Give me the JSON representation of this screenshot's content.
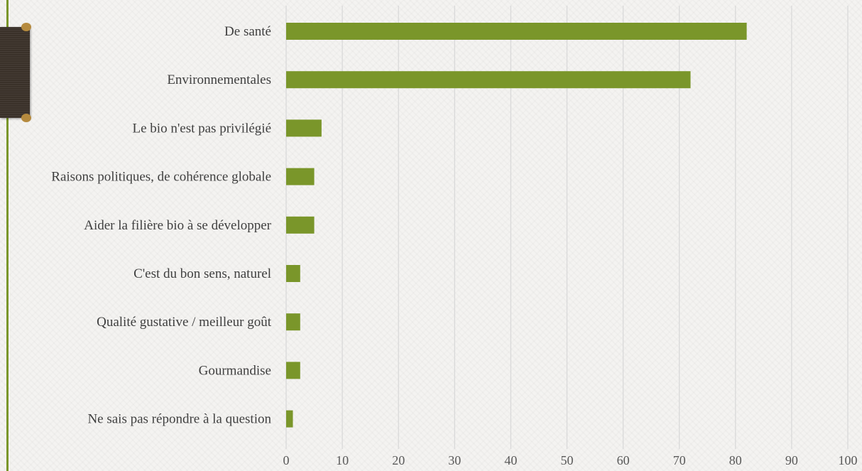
{
  "colors": {
    "bar": "#7a962a",
    "grid": "#d9d9d9",
    "slide_edge": "#7a962a",
    "ribbon": "#3a3129"
  },
  "decor": {
    "ribbon_icon": "bookmark-ribbon-icon"
  },
  "chart_data": {
    "type": "bar",
    "orientation": "horizontal",
    "title": "",
    "xlabel": "",
    "ylabel": "",
    "categories": [
      "De santé",
      "Environnementales",
      "Le bio n'est pas privilégié",
      "Raisons politiques, de cohérence globale",
      "Aider la filière bio à se développer",
      "C'est du bon sens, naturel",
      "Qualité gustative / meilleur goût",
      "Gourmandise",
      "Ne sais pas répondre à la question"
    ],
    "values": [
      82,
      72,
      6.3,
      5,
      5,
      2.5,
      2.5,
      2.5,
      1.2
    ],
    "xlim": [
      0,
      100
    ],
    "xticks": [
      "0",
      "10",
      "20",
      "30",
      "40",
      "50",
      "60",
      "70",
      "80",
      "90",
      "100"
    ],
    "grid": "vertical",
    "legend": "none"
  }
}
